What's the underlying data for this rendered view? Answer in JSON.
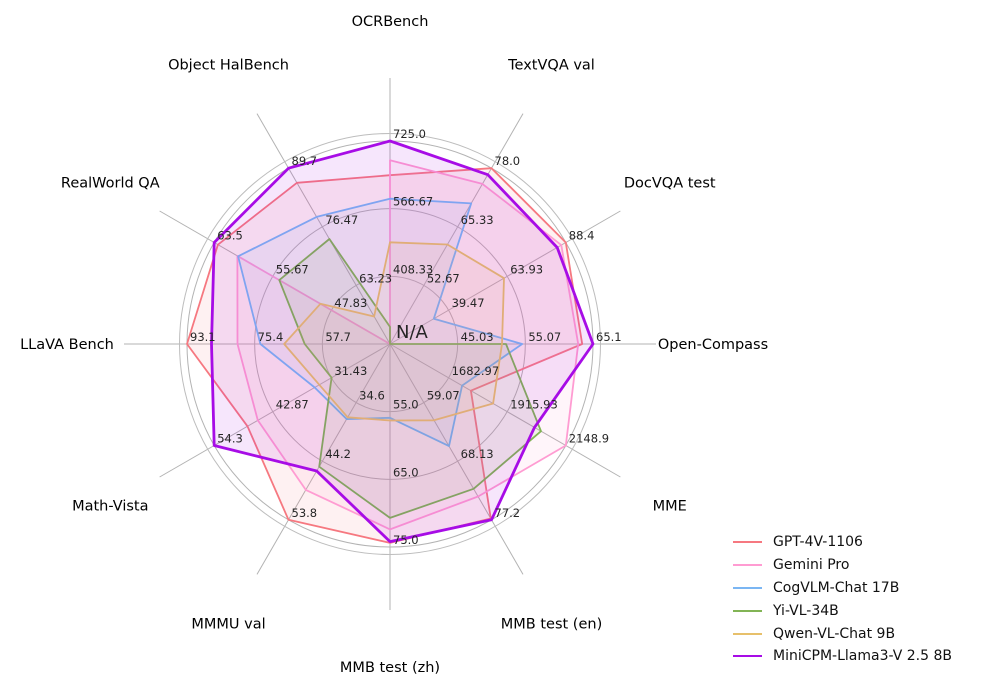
{
  "figure": {
    "background": "#ffffff",
    "center_label": "N/A",
    "grid_color": "#b3b3b3",
    "spine_color": "#bdbdbd",
    "tick_color": "#262626",
    "title_color": "#000000"
  },
  "chart_data": {
    "type": "radar",
    "title": "",
    "legend_position": "lower right",
    "na_policy": "missing values are plotted at the center (N/A)",
    "ring_fractions": [
      0.3333,
      0.6667,
      1.0
    ],
    "axes": [
      {
        "label": "OCRBench",
        "angle_deg": 90,
        "min": 250,
        "max": 725,
        "ticks": [
          "408.33",
          "566.67",
          "725.0"
        ]
      },
      {
        "label": "TextVQA val",
        "angle_deg": 60,
        "min": 40,
        "max": 78,
        "ticks": [
          "52.67",
          "65.33",
          "78.0"
        ]
      },
      {
        "label": "DocVQA test",
        "angle_deg": 30,
        "min": 15,
        "max": 88.4,
        "ticks": [
          "39.47",
          "63.93",
          "88.4"
        ]
      },
      {
        "label": "Open-Compass",
        "angle_deg": 0,
        "min": 35,
        "max": 65.1,
        "ticks": [
          "45.03",
          "55.07",
          "65.1"
        ]
      },
      {
        "label": "MME",
        "angle_deg": -30,
        "min": 1450,
        "max": 2148.9,
        "ticks": [
          "1682.97",
          "1915.93",
          "2148.9"
        ]
      },
      {
        "label": "MMB test (en)",
        "angle_deg": -60,
        "min": 50,
        "max": 77.2,
        "ticks": [
          "59.07",
          "68.13",
          "77.2"
        ]
      },
      {
        "label": "MMB test (zh)",
        "angle_deg": -90,
        "min": 45,
        "max": 75,
        "ticks": [
          "55.0",
          "65.0",
          "75.0"
        ]
      },
      {
        "label": "MMMU val",
        "angle_deg": -120,
        "min": 25,
        "max": 53.8,
        "ticks": [
          "34.6",
          "44.2",
          "53.8"
        ]
      },
      {
        "label": "Math-Vista",
        "angle_deg": -150,
        "min": 20,
        "max": 54.3,
        "ticks": [
          "31.43",
          "42.87",
          "54.3"
        ]
      },
      {
        "label": "LLaVA Bench",
        "angle_deg": 180,
        "min": 40,
        "max": 93.1,
        "ticks": [
          "57.7",
          "75.4",
          "93.1"
        ]
      },
      {
        "label": "RealWorld QA",
        "angle_deg": 150,
        "min": 40,
        "max": 63.5,
        "ticks": [
          "47.83",
          "55.67",
          "63.5"
        ]
      },
      {
        "label": "Object HalBench",
        "angle_deg": 120,
        "min": 50,
        "max": 89.7,
        "ticks": [
          "63.23",
          "76.47",
          "89.7"
        ]
      }
    ],
    "series": [
      {
        "name": "GPT-4V-1106",
        "color": "#F67880",
        "line_width": 1.8,
        "values": [
          645,
          78.0,
          88.4,
          63.5,
          1771.5,
          77.0,
          74.4,
          53.8,
          47.8,
          93.1,
          63.0,
          86.4
        ]
      },
      {
        "name": "Gemini Pro",
        "color": "#FF9CD2",
        "line_width": 1.8,
        "values": [
          680,
          74.6,
          86.5,
          62.9,
          2148.9,
          73.6,
          72.4,
          48.9,
          45.8,
          79.9,
          60.4,
          null
        ]
      },
      {
        "name": "CogVLM-Chat 17B",
        "color": "#7BB6F3",
        "line_width": 1.8,
        "values": [
          590,
          70.4,
          33.3,
          54.6,
          1736.6,
          65.8,
          55.9,
          37.3,
          34.7,
          73.9,
          60.3,
          78.7
        ]
      },
      {
        "name": "Yi-VL-34B",
        "color": "#82B455",
        "line_width": 1.8,
        "values": [
          290,
          null,
          null,
          52.2,
          2050.2,
          72.4,
          70.7,
          45.1,
          31.4,
          62.3,
          54.8,
          73.7
        ]
      },
      {
        "name": "Qwen-VL-Chat 9B",
        "color": "#E7C06B",
        "line_width": 1.8,
        "values": [
          488,
          61.5,
          62.6,
          51.6,
          1860.0,
          61.8,
          56.3,
          37.0,
          33.8,
          67.7,
          49.3,
          56.2
        ]
      },
      {
        "name": "MiniCPM-Llama3-V 2.5 8B",
        "color": "#A70CE6",
        "line_width": 2.8,
        "values": [
          725,
          76.6,
          84.8,
          65.1,
          2024.6,
          77.2,
          74.2,
          45.8,
          54.3,
          86.7,
          63.5,
          89.7
        ]
      }
    ]
  }
}
